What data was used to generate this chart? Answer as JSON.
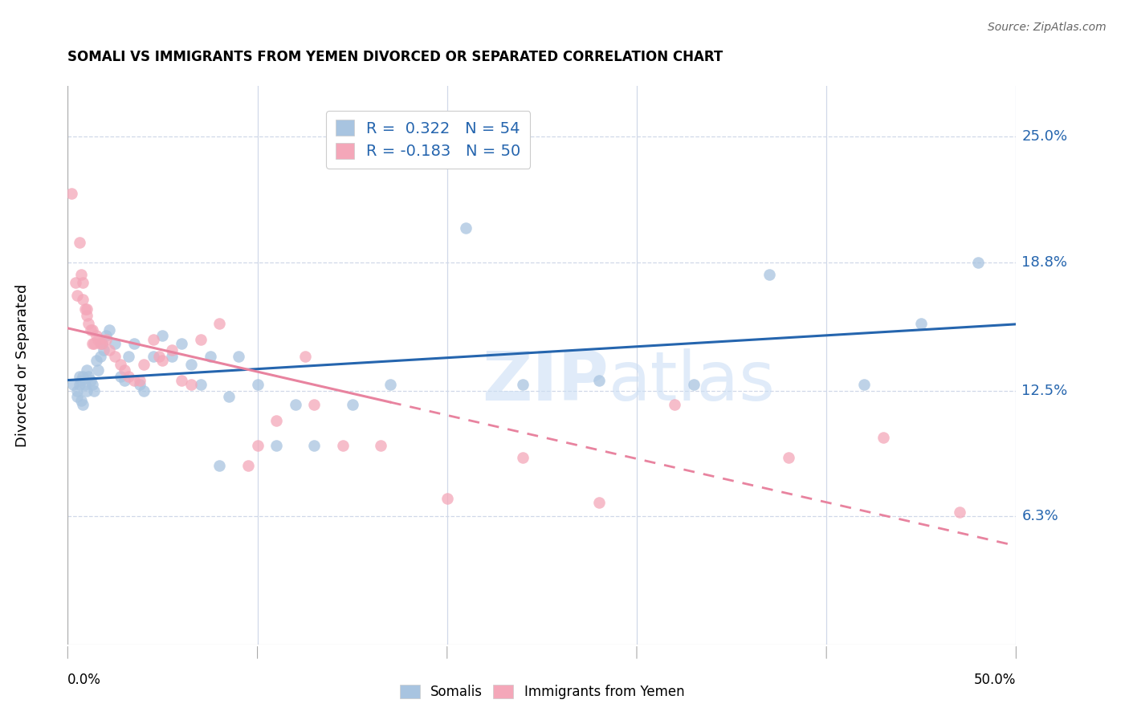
{
  "title": "SOMALI VS IMMIGRANTS FROM YEMEN DIVORCED OR SEPARATED CORRELATION CHART",
  "source": "Source: ZipAtlas.com",
  "ylabel": "Divorced or Separated",
  "ytick_labels": [
    "6.3%",
    "12.5%",
    "18.8%",
    "25.0%"
  ],
  "ytick_values": [
    0.063,
    0.125,
    0.188,
    0.25
  ],
  "xtick_positions": [
    0.0,
    0.1,
    0.2,
    0.3,
    0.4,
    0.5
  ],
  "xlim": [
    0.0,
    0.5
  ],
  "ylim": [
    0.0,
    0.275
  ],
  "somali_color": "#a8c4e0",
  "yemen_color": "#f4a7b9",
  "somali_line_color": "#2565ae",
  "yemen_line_color": "#e8839f",
  "grid_color": "#d0d8e8",
  "watermark_color": "#ccdff5",
  "somali_x": [
    0.003,
    0.005,
    0.005,
    0.006,
    0.006,
    0.007,
    0.007,
    0.008,
    0.008,
    0.009,
    0.01,
    0.01,
    0.011,
    0.012,
    0.013,
    0.014,
    0.015,
    0.016,
    0.017,
    0.018,
    0.019,
    0.02,
    0.022,
    0.025,
    0.028,
    0.03,
    0.032,
    0.035,
    0.038,
    0.04,
    0.045,
    0.05,
    0.055,
    0.06,
    0.065,
    0.07,
    0.075,
    0.08,
    0.085,
    0.09,
    0.1,
    0.11,
    0.12,
    0.13,
    0.15,
    0.17,
    0.21,
    0.24,
    0.28,
    0.33,
    0.37,
    0.42,
    0.45,
    0.48
  ],
  "somali_y": [
    0.128,
    0.122,
    0.125,
    0.132,
    0.128,
    0.13,
    0.12,
    0.118,
    0.132,
    0.128,
    0.125,
    0.135,
    0.132,
    0.13,
    0.128,
    0.125,
    0.14,
    0.135,
    0.142,
    0.148,
    0.145,
    0.152,
    0.155,
    0.148,
    0.132,
    0.13,
    0.142,
    0.148,
    0.128,
    0.125,
    0.142,
    0.152,
    0.142,
    0.148,
    0.138,
    0.128,
    0.142,
    0.088,
    0.122,
    0.142,
    0.128,
    0.098,
    0.118,
    0.098,
    0.118,
    0.128,
    0.205,
    0.128,
    0.13,
    0.128,
    0.182,
    0.128,
    0.158,
    0.188
  ],
  "yemen_x": [
    0.002,
    0.004,
    0.005,
    0.006,
    0.007,
    0.008,
    0.008,
    0.009,
    0.01,
    0.01,
    0.011,
    0.012,
    0.013,
    0.013,
    0.014,
    0.015,
    0.016,
    0.017,
    0.018,
    0.02,
    0.022,
    0.025,
    0.028,
    0.03,
    0.032,
    0.035,
    0.038,
    0.04,
    0.045,
    0.048,
    0.05,
    0.055,
    0.06,
    0.065,
    0.07,
    0.08,
    0.095,
    0.1,
    0.11,
    0.125,
    0.13,
    0.145,
    0.165,
    0.2,
    0.24,
    0.28,
    0.32,
    0.38,
    0.43,
    0.47
  ],
  "yemen_y": [
    0.222,
    0.178,
    0.172,
    0.198,
    0.182,
    0.178,
    0.17,
    0.165,
    0.165,
    0.162,
    0.158,
    0.155,
    0.155,
    0.148,
    0.148,
    0.152,
    0.15,
    0.148,
    0.148,
    0.15,
    0.145,
    0.142,
    0.138,
    0.135,
    0.132,
    0.13,
    0.13,
    0.138,
    0.15,
    0.142,
    0.14,
    0.145,
    0.13,
    0.128,
    0.15,
    0.158,
    0.088,
    0.098,
    0.11,
    0.142,
    0.118,
    0.098,
    0.098,
    0.072,
    0.092,
    0.07,
    0.118,
    0.092,
    0.102,
    0.065
  ],
  "somali_R": 0.322,
  "somali_N": 54,
  "yemen_R": -0.183,
  "yemen_N": 50,
  "somali_legend": "R =  0.322   N = 54",
  "yemen_legend": "R = -0.183   N = 50"
}
